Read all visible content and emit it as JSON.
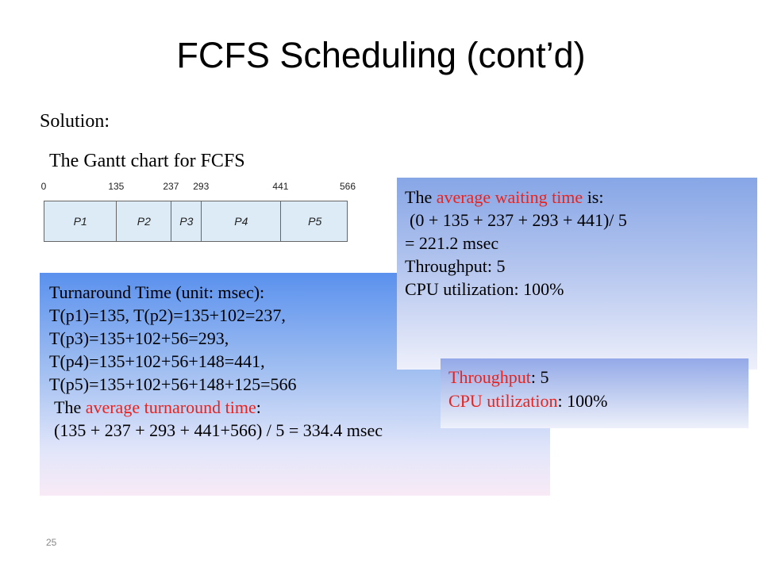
{
  "slide": {
    "title": "FCFS Scheduling (cont’d)",
    "solution_label": "Solution:",
    "gantt_caption": "The Gantt chart for FCFS",
    "slide_number": "25"
  },
  "gantt": {
    "ticks": [
      "0",
      "135",
      "237",
      "293",
      "441",
      "566"
    ],
    "tick_values": [
      0,
      135,
      237,
      293,
      441,
      566
    ],
    "processes": [
      {
        "label": "P1",
        "start": 0,
        "end": 135
      },
      {
        "label": "P2",
        "start": 135,
        "end": 237
      },
      {
        "label": "P3",
        "start": 237,
        "end": 293
      },
      {
        "label": "P4",
        "start": 293,
        "end": 441
      },
      {
        "label": "P5",
        "start": 441,
        "end": 566
      }
    ],
    "bar_color": "#dcebf6"
  },
  "waiting_box": {
    "line1_prefix": "The ",
    "line1_highlight": "average waiting time",
    "line1_suffix": " is:",
    "formula": "(0 + 135 + 237 + 293 + 441)/ 5",
    "result": "= 221.2 msec",
    "throughput": "Throughput:  5",
    "cpu_utilization": "CPU utilization: 100%"
  },
  "turnaround_box": {
    "heading": "Turnaround Time (unit: msec):",
    "lines": [
      "T(p1)=135, T(p2)=135+102=237,",
      "T(p3)=135+102+56=293,",
      "T(p4)=135+102+56+148=441,",
      "T(p5)=135+102+56+148+125=566"
    ],
    "avg_prefix": "The ",
    "avg_highlight": "average turnaround time",
    "avg_suffix": ":",
    "avg_formula": "(135 + 237 + 293 + 441+566) / 5 = 334.4 msec"
  },
  "throughput_box": {
    "throughput_label": "Throughput",
    "throughput_value": ":  5",
    "cpu_label": "CPU utilization",
    "cpu_value": ": 100%"
  },
  "colors": {
    "highlight": "#e8231f"
  }
}
